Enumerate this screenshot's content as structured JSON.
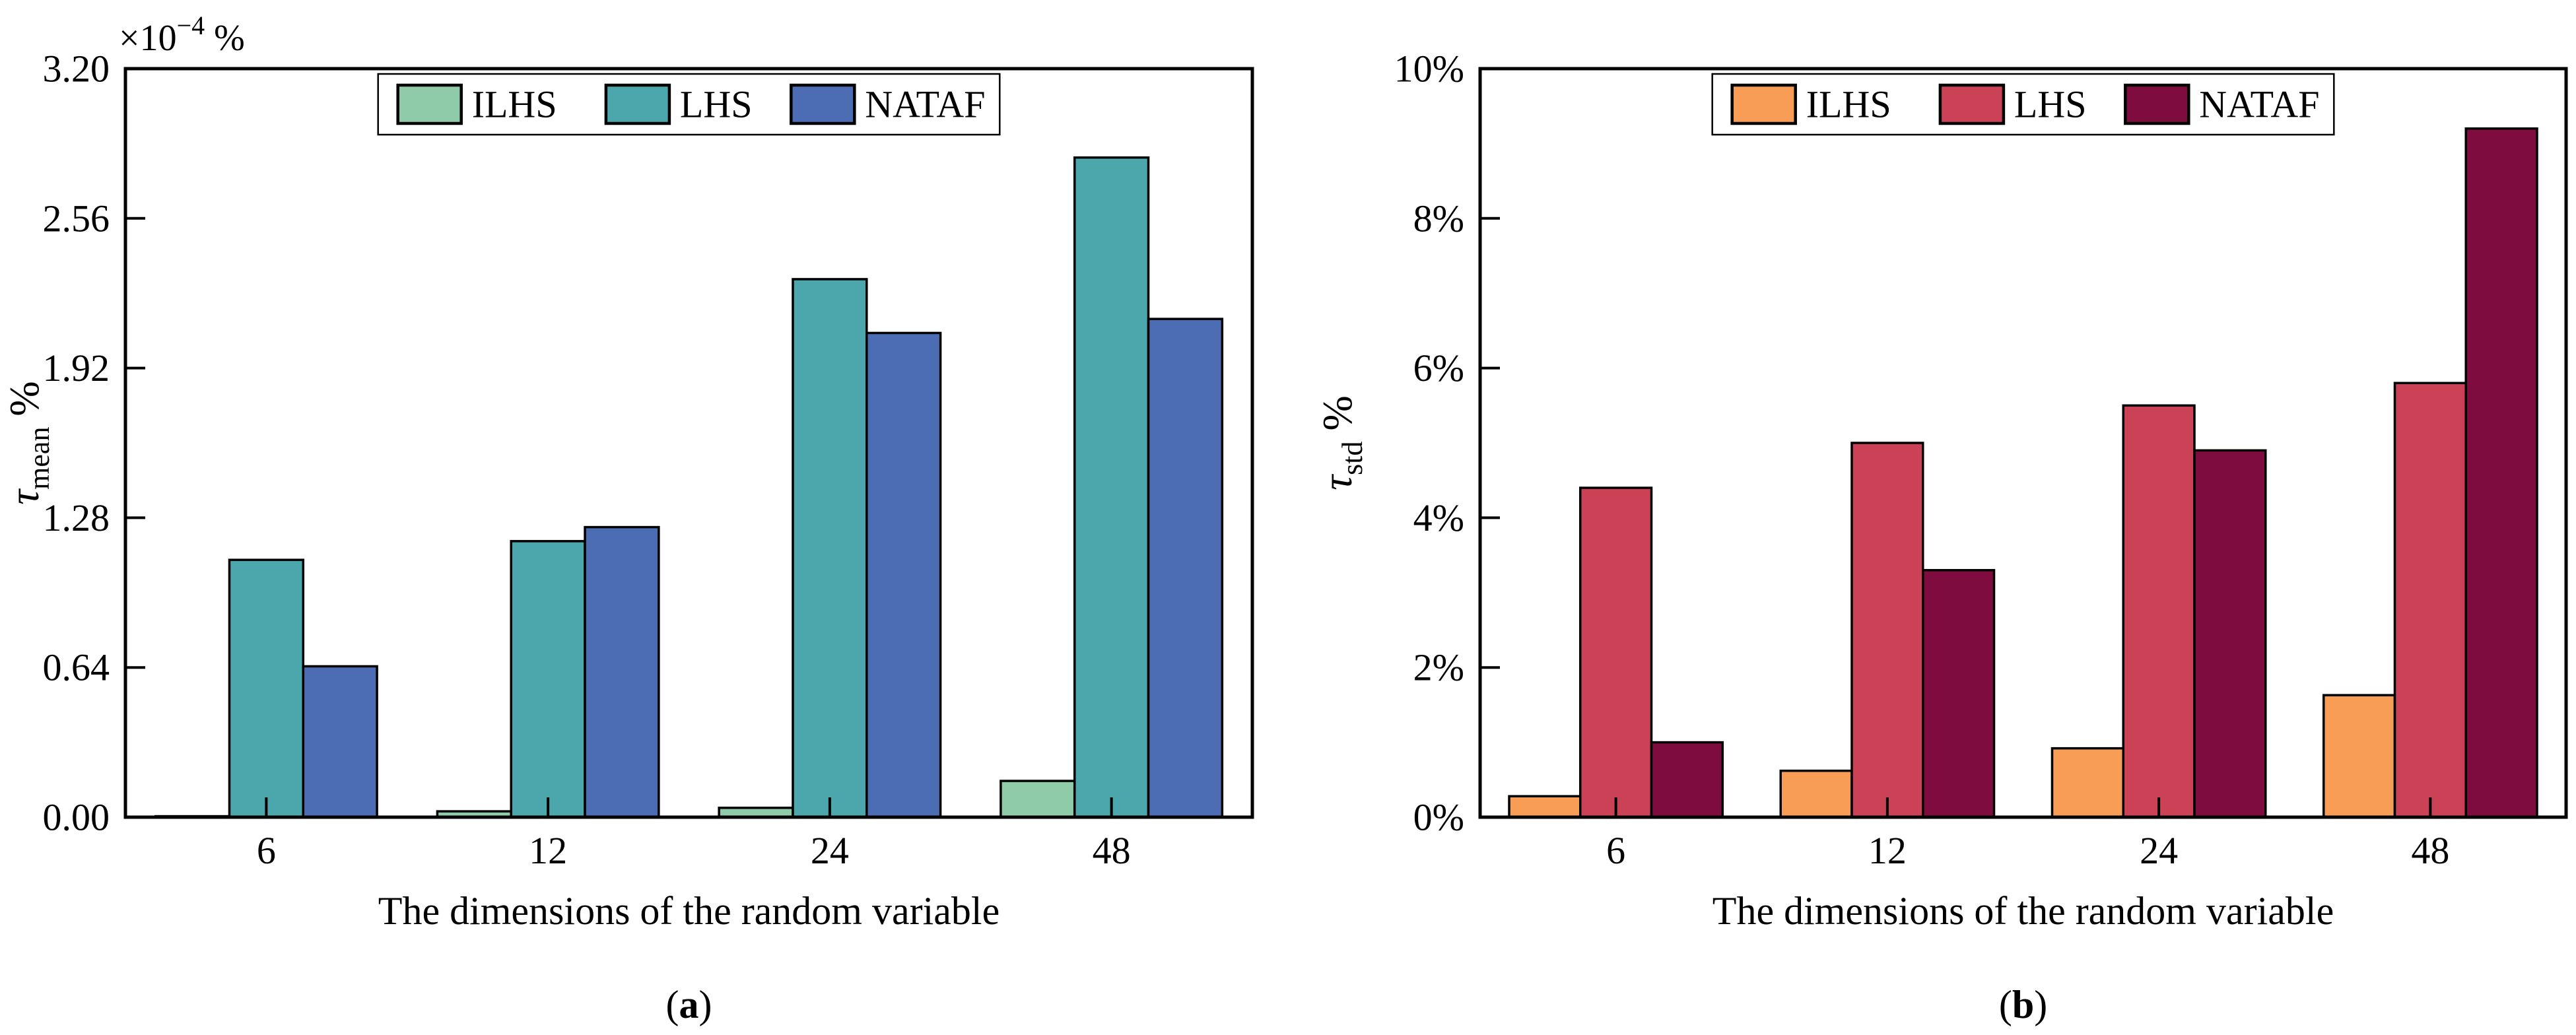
{
  "figure": {
    "background": "#FFFFFF",
    "axis_color": "#000000",
    "text_color": "#000000"
  },
  "chart_data": [
    {
      "type": "bar",
      "panel_letter": "a",
      "xlabel": "The dimensions of the random variable",
      "ylabel": {
        "symbol": "τ",
        "subscript": "mean",
        "unit": "%"
      },
      "y_offset_label": {
        "prefix": "×10",
        "exponent": "−4",
        "suffix": " %"
      },
      "categories": [
        "6",
        "12",
        "24",
        "48"
      ],
      "ytick_labels": [
        "0.00",
        "0.64",
        "1.28",
        "1.92",
        "2.56",
        "3.20"
      ],
      "ytick_values": [
        0,
        0.64,
        1.28,
        1.92,
        2.56,
        3.2
      ],
      "ylim": [
        0,
        3.2
      ],
      "grid": false,
      "legend_position": "top-center",
      "legend_items": [
        "ILHS",
        "LHS",
        "NATAF"
      ],
      "series": [
        {
          "name": "ILHS",
          "color": "#8FCBA8",
          "values": [
            0.004,
            0.025,
            0.04,
            0.155
          ]
        },
        {
          "name": "LHS",
          "color": "#4BA7AC",
          "values": [
            1.1,
            1.18,
            2.3,
            2.82
          ]
        },
        {
          "name": "NATAF",
          "color": "#4C6DB3",
          "values": [
            0.645,
            1.24,
            2.07,
            2.13
          ]
        }
      ]
    },
    {
      "type": "bar",
      "panel_letter": "b",
      "xlabel": "The dimensions of the random variable",
      "ylabel": {
        "symbol": "τ",
        "subscript": "std",
        "unit": "%"
      },
      "y_offset_label": null,
      "categories": [
        "6",
        "12",
        "24",
        "48"
      ],
      "ytick_labels": [
        "0%",
        "2%",
        "4%",
        "6%",
        "8%",
        "10%"
      ],
      "ytick_values": [
        0,
        2,
        4,
        6,
        8,
        10
      ],
      "ylim": [
        0,
        10
      ],
      "grid": false,
      "legend_position": "top-center",
      "legend_items": [
        "ILHS",
        "LHS",
        "NATAF"
      ],
      "series": [
        {
          "name": "ILHS",
          "color": "#F89D55",
          "values": [
            0.28,
            0.62,
            0.92,
            1.63
          ]
        },
        {
          "name": "LHS",
          "color": "#CB4257",
          "values": [
            4.4,
            5.0,
            5.5,
            5.8
          ]
        },
        {
          "name": "NATAF",
          "color": "#7F0C3E",
          "values": [
            1.0,
            3.3,
            4.9,
            9.2
          ]
        }
      ]
    }
  ]
}
